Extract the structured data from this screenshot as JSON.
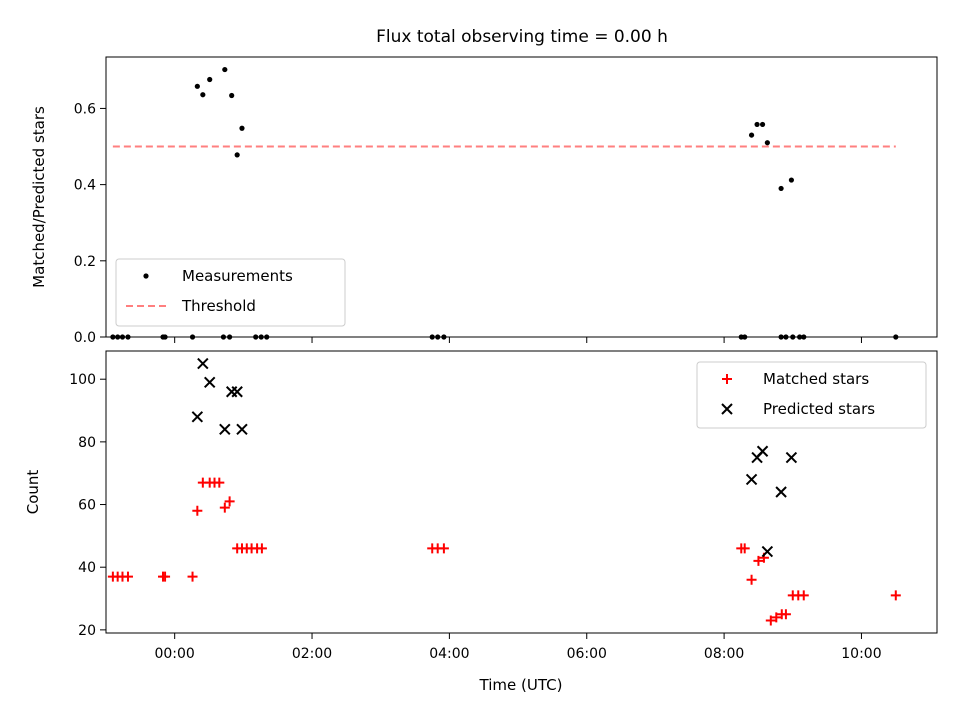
{
  "chart_data": [
    {
      "type": "scatter",
      "title": "Flux total observing time = 0.00 h",
      "xlabel": "",
      "ylabel": "Matched/Predicted stars",
      "xlim": [
        -1.0,
        11.1
      ],
      "ylim": [
        0.0,
        0.735
      ],
      "y_ticks": [
        "0.0",
        "0.2",
        "0.4",
        "0.6"
      ],
      "y_tick_values": [
        0.0,
        0.2,
        0.4,
        0.6
      ],
      "x_tick_values": [
        0,
        2,
        4,
        6,
        8,
        10
      ],
      "legend_position": "lower-left",
      "series": [
        {
          "name": "Measurements",
          "marker": "dot",
          "color": "#000000",
          "points": [
            [
              -0.9,
              0.0
            ],
            [
              -0.83,
              0.0
            ],
            [
              -0.76,
              0.0
            ],
            [
              -0.68,
              0.0
            ],
            [
              -0.17,
              0.0
            ],
            [
              -0.14,
              0.0
            ],
            [
              0.26,
              0.0
            ],
            [
              0.71,
              0.0
            ],
            [
              0.8,
              0.0
            ],
            [
              1.18,
              0.0
            ],
            [
              1.26,
              0.0
            ],
            [
              1.34,
              0.0
            ],
            [
              3.75,
              0.0
            ],
            [
              3.83,
              0.0
            ],
            [
              3.92,
              0.0
            ],
            [
              8.25,
              0.0
            ],
            [
              8.3,
              0.0
            ],
            [
              8.83,
              0.0
            ],
            [
              8.9,
              0.0
            ],
            [
              9.0,
              0.0
            ],
            [
              9.1,
              0.0
            ],
            [
              9.16,
              0.0
            ],
            [
              10.5,
              0.0
            ],
            [
              0.33,
              0.658
            ],
            [
              0.41,
              0.636
            ],
            [
              0.51,
              0.676
            ],
            [
              0.73,
              0.702
            ],
            [
              0.83,
              0.634
            ],
            [
              0.91,
              0.478
            ],
            [
              0.98,
              0.548
            ],
            [
              8.4,
              0.53
            ],
            [
              8.48,
              0.558
            ],
            [
              8.56,
              0.558
            ],
            [
              8.63,
              0.51
            ],
            [
              8.83,
              0.39
            ],
            [
              8.98,
              0.412
            ]
          ]
        },
        {
          "name": "Threshold",
          "marker": "dashed-line",
          "color": "#ff7f7f",
          "x": [
            -0.9,
            10.5
          ],
          "y": [
            0.5,
            0.5
          ]
        }
      ]
    },
    {
      "type": "scatter",
      "title": "",
      "xlabel": "Time (UTC)",
      "ylabel": "Count",
      "xlim": [
        -1.0,
        11.1
      ],
      "ylim": [
        19.0,
        109.0
      ],
      "y_ticks": [
        "20",
        "40",
        "60",
        "80",
        "100"
      ],
      "y_tick_values": [
        20,
        40,
        60,
        80,
        100
      ],
      "x_ticks": [
        "00:00",
        "02:00",
        "04:00",
        "06:00",
        "08:00",
        "10:00"
      ],
      "x_tick_values": [
        0,
        2,
        4,
        6,
        8,
        10
      ],
      "legend_position": "upper-right",
      "series": [
        {
          "name": "Matched stars",
          "marker": "plus",
          "color": "#ff0000",
          "points": [
            [
              -0.9,
              37
            ],
            [
              -0.83,
              37
            ],
            [
              -0.76,
              37
            ],
            [
              -0.68,
              37
            ],
            [
              -0.17,
              37
            ],
            [
              -0.14,
              37
            ],
            [
              0.26,
              37
            ],
            [
              0.33,
              58
            ],
            [
              0.41,
              67
            ],
            [
              0.51,
              67
            ],
            [
              0.58,
              67
            ],
            [
              0.65,
              67
            ],
            [
              0.73,
              59
            ],
            [
              0.8,
              61
            ],
            [
              0.91,
              46
            ],
            [
              0.98,
              46
            ],
            [
              1.05,
              46
            ],
            [
              1.12,
              46
            ],
            [
              1.2,
              46
            ],
            [
              1.27,
              46
            ],
            [
              3.75,
              46
            ],
            [
              3.83,
              46
            ],
            [
              3.92,
              46
            ],
            [
              8.25,
              46
            ],
            [
              8.3,
              46
            ],
            [
              8.4,
              36
            ],
            [
              8.5,
              42
            ],
            [
              8.58,
              43
            ],
            [
              8.68,
              23
            ],
            [
              8.76,
              24
            ],
            [
              8.84,
              25
            ],
            [
              8.9,
              25
            ],
            [
              9.0,
              31
            ],
            [
              9.08,
              31
            ],
            [
              9.16,
              31
            ],
            [
              10.5,
              31
            ]
          ]
        },
        {
          "name": "Predicted stars",
          "marker": "x",
          "color": "#000000",
          "points": [
            [
              0.33,
              88
            ],
            [
              0.41,
              105
            ],
            [
              0.51,
              99
            ],
            [
              0.73,
              84
            ],
            [
              0.83,
              96
            ],
            [
              0.91,
              96
            ],
            [
              0.98,
              84
            ],
            [
              8.4,
              68
            ],
            [
              8.48,
              75
            ],
            [
              8.56,
              77
            ],
            [
              8.63,
              45
            ],
            [
              8.83,
              64
            ],
            [
              8.98,
              75
            ]
          ]
        }
      ]
    }
  ]
}
